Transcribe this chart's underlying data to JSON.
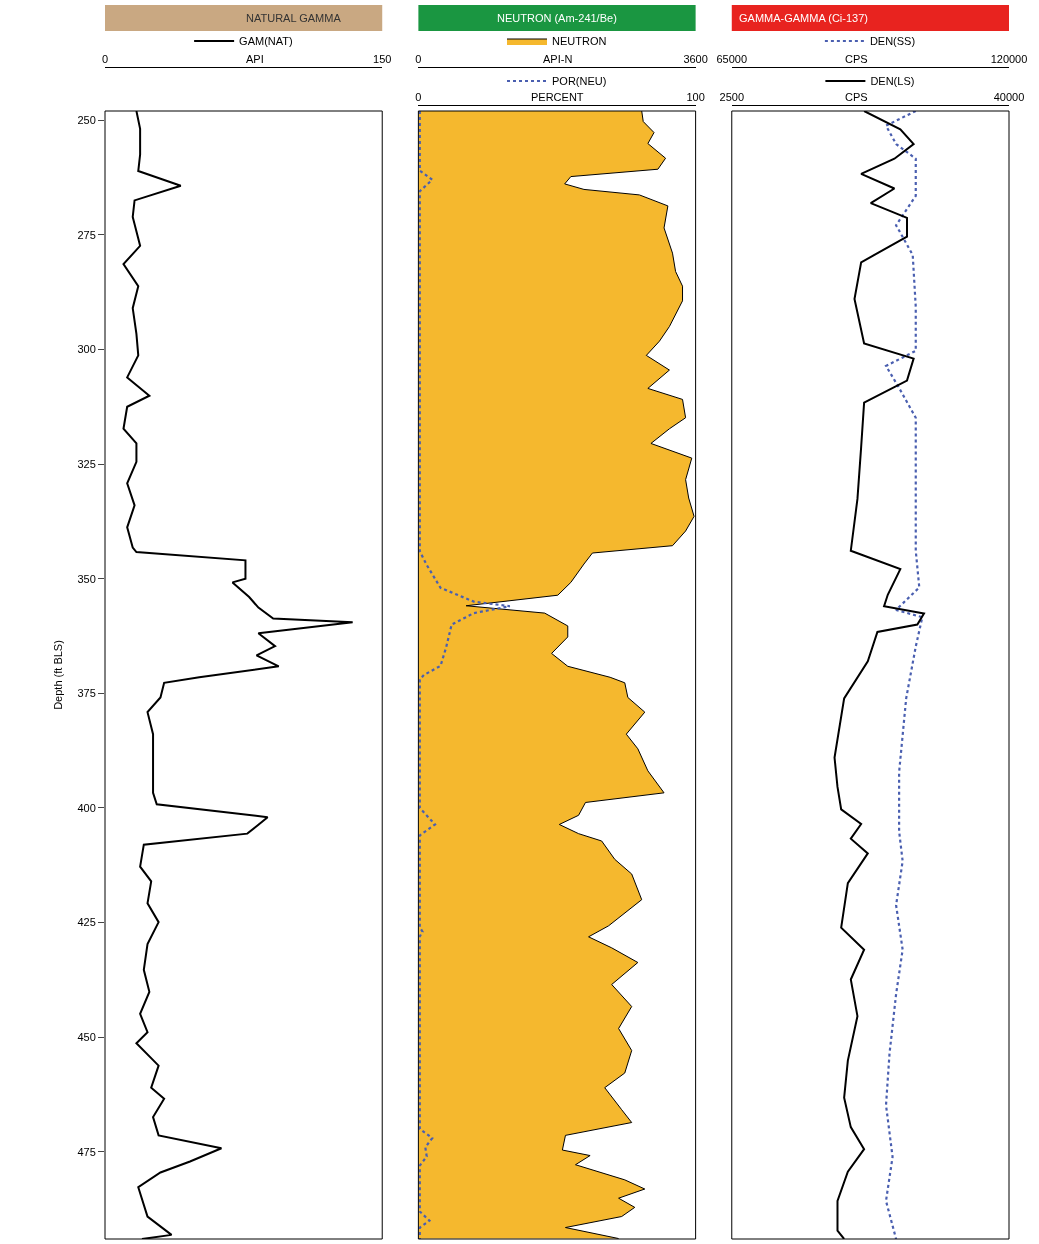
{
  "chart_data": [
    {
      "type": "line",
      "title": "NATURAL GAMMA",
      "orientation": "horizontal",
      "ylabel": "Depth (ft BLS)",
      "xlabel": "API",
      "xlim": [
        0,
        150
      ],
      "xticks": [
        0,
        150
      ],
      "ylim": [
        494,
        248
      ],
      "yticks": [
        250,
        275,
        300,
        325,
        350,
        375,
        400,
        425,
        450,
        475
      ],
      "legend": "top",
      "marker": "none",
      "series": [
        {
          "name": "GAM(NAT)",
          "color": "#000000",
          "line_style": "solid",
          "x": [
            248,
            251.9,
            257.5,
            261.1,
            264.3,
            267.5,
            271.1,
            277.4,
            281.4,
            286.2,
            291,
            296.6,
            301.3,
            306.1,
            310.1,
            312.5,
            317.3,
            320.5,
            324.5,
            329.2,
            334,
            338.8,
            343.2,
            344.2,
            346,
            350,
            350.8,
            354,
            356.3,
            358.7,
            359.5,
            361.9,
            364.7,
            366.7,
            369.1,
            371.5,
            372.7,
            375.9,
            379.1,
            383.9,
            390.3,
            396.7,
            399.2,
            402,
            404,
            405.6,
            408,
            412.8,
            416,
            420.8,
            424.9,
            429.7,
            435.3,
            440.1,
            444.9,
            448.9,
            451.3,
            456.2,
            461,
            463.4,
            467.4,
            471.4,
            474.2,
            477.1,
            479.5,
            482.7,
            489.1,
            493.1,
            494
          ],
          "values": [
            17,
            19,
            19,
            18,
            41,
            16,
            15,
            19,
            10,
            18,
            15,
            17,
            18,
            12,
            24,
            12,
            10,
            17,
            17,
            12,
            16,
            12,
            15,
            17,
            76,
            76,
            69,
            78,
            83,
            91,
            134,
            83,
            92,
            82,
            94,
            51,
            32,
            30,
            23,
            26,
            26,
            26,
            28,
            88,
            82,
            77,
            21,
            19,
            25,
            23,
            29,
            23,
            21,
            24,
            19,
            23,
            17,
            29,
            25,
            32,
            26,
            29,
            63,
            46,
            30,
            18,
            23,
            36,
            20
          ]
        }
      ]
    },
    {
      "type": "line",
      "title": "NEUTRON (Am-241/Be)",
      "orientation": "horizontal",
      "xlabel": "API-N",
      "x2label": "PERCENT",
      "xlim": [
        0,
        3600
      ],
      "xticks": [
        0,
        3600
      ],
      "x2lim": [
        0,
        100
      ],
      "x2ticks": [
        0,
        100
      ],
      "ylim": [
        494,
        248
      ],
      "yticks": [
        250,
        275,
        300,
        325,
        350,
        375,
        400,
        425,
        450,
        475
      ],
      "tick_labels": "x",
      "legend": "top",
      "marker": "none",
      "series": [
        {
          "name": "NEUTRON",
          "type": "area",
          "color": "#f5b82e",
          "line_style": "solid",
          "x": [
            248,
            250.3,
            252.7,
            255.1,
            258.3,
            260.7,
            262.3,
            263.9,
            265.1,
            266.3,
            268.7,
            273.5,
            279,
            283,
            286.2,
            289.4,
            295,
            298.2,
            301.3,
            304.5,
            308.5,
            310.9,
            314.9,
            317.3,
            320.5,
            323.7,
            328.4,
            332.4,
            336.4,
            339.6,
            342.8,
            344.4,
            346.8,
            350.8,
            353.6,
            355.9,
            357.5,
            360.3,
            362.7,
            366.3,
            369.1,
            371.5,
            372.7,
            375.9,
            379.1,
            383.9,
            387.1,
            391.9,
            396.7,
            398.8,
            401.6,
            403.6,
            405.6,
            407.2,
            411.2,
            414.4,
            420,
            425.7,
            428.1,
            430.5,
            433.7,
            438.5,
            443.3,
            448.1,
            452.9,
            457.8,
            461,
            465.8,
            468.6,
            471.4,
            474.6,
            475.8,
            477.8,
            481.1,
            483.1,
            485.1,
            487.1,
            489.1,
            491.5,
            493.9
          ],
          "values": [
            2900,
            2920,
            3060,
            2980,
            3210,
            3110,
            1980,
            1900,
            2150,
            2870,
            3240,
            3190,
            3300,
            3340,
            3430,
            3430,
            3260,
            3130,
            2960,
            3260,
            2980,
            3430,
            3470,
            3260,
            3020,
            3550,
            3470,
            3510,
            3580,
            3470,
            3300,
            2260,
            2150,
            1980,
            1810,
            620,
            1640,
            1940,
            1940,
            1730,
            1940,
            2490,
            2680,
            2720,
            2940,
            2700,
            2850,
            2980,
            3190,
            2170,
            2080,
            1830,
            2080,
            2380,
            2550,
            2770,
            2900,
            2470,
            2210,
            2510,
            2850,
            2510,
            2770,
            2600,
            2770,
            2680,
            2420,
            2640,
            2770,
            1910,
            1870,
            2230,
            2040,
            2680,
            2940,
            2600,
            2810,
            2640,
            1910,
            2600
          ]
        },
        {
          "name": "POR(NEU)",
          "type": "line",
          "axis": "x2",
          "color": "#4a5fb0",
          "line_style": "dotted",
          "x": [
            248,
            261,
            263,
            265.5,
            344,
            347,
            352,
            355,
            356,
            357.5,
            360,
            365,
            369,
            371,
            372,
            400,
            403.6,
            406,
            426,
            427,
            428,
            470,
            472,
            474,
            476,
            478,
            488,
            490,
            491.5,
            494
          ],
          "values": [
            0.5,
            0.5,
            5,
            0.5,
            0.5,
            3,
            8,
            20,
            33,
            20,
            12,
            10,
            8,
            2,
            0.5,
            0.5,
            6,
            0.5,
            0.5,
            1.5,
            0.5,
            0.5,
            5,
            2.5,
            3,
            0.5,
            0.5,
            4,
            0.5,
            0.5
          ]
        }
      ]
    },
    {
      "type": "line",
      "title": "GAMMA-GAMMA (Ci-137)",
      "orientation": "horizontal",
      "xlabel": "CPS",
      "x2label": "CPS",
      "xlim": [
        65000,
        120000
      ],
      "xticks": [
        65000,
        120000
      ],
      "x2lim": [
        2500,
        40000
      ],
      "x2ticks": [
        2500,
        40000
      ],
      "ylim": [
        494,
        248
      ],
      "yticks": [
        250,
        275,
        300,
        325,
        350,
        375,
        400,
        425,
        450,
        475
      ],
      "tick_labels": "x",
      "legend": "top",
      "marker": "none",
      "series": [
        {
          "name": "DEN(SS)",
          "type": "line",
          "color": "#4a5fb0",
          "line_style": "dotted",
          "x": [
            248,
            251.2,
            255.2,
            258.4,
            266.5,
            272.9,
            279.4,
            290.7,
            300.3,
            303.6,
            308.4,
            314.9,
            327.7,
            343.9,
            351.9,
            356.8,
            358.4,
            364.8,
            376.1,
            392.2,
            405.1,
            411.6,
            421.2,
            430.9,
            440.6,
            453.5,
            464.8,
            476.1,
            485.7,
            494
          ],
          "values": [
            101500,
            95600,
            97600,
            101500,
            101500,
            97600,
            100900,
            101500,
            101500,
            95600,
            98200,
            101500,
            101500,
            101500,
            102200,
            97600,
            102800,
            101500,
            99600,
            98200,
            98200,
            98900,
            97600,
            98900,
            97600,
            96300,
            95600,
            96900,
            95600,
            97600
          ]
        },
        {
          "name": "DEN(LS)",
          "type": "line",
          "axis": "x2",
          "color": "#000000",
          "line_style": "solid",
          "x": [
            248,
            252,
            255.2,
            258.4,
            261.7,
            264.9,
            268.1,
            271.3,
            275.4,
            281,
            289,
            298.7,
            302,
            306.8,
            311.6,
            321.3,
            332.6,
            343.9,
            347.9,
            353.5,
            356,
            357.6,
            360,
            361.6,
            368,
            376.1,
            389,
            395.4,
            400.3,
            403.5,
            406.7,
            409.9,
            416.4,
            426.1,
            430.9,
            437.4,
            445.4,
            455.1,
            463.2,
            469.6,
            474.4,
            479.3,
            485.7,
            492.2,
            494
          ],
          "values": [
            20400,
            25300,
            27100,
            24500,
            20000,
            24500,
            21300,
            26200,
            26200,
            20000,
            19100,
            20400,
            27100,
            26200,
            20400,
            20000,
            19500,
            18600,
            25300,
            23600,
            23100,
            28500,
            27600,
            22200,
            20900,
            17700,
            16400,
            16800,
            17300,
            20000,
            18600,
            20900,
            18200,
            17300,
            20400,
            18600,
            19500,
            18200,
            17700,
            18600,
            20400,
            18200,
            16800,
            16800,
            17700
          ]
        }
      ]
    }
  ]
}
